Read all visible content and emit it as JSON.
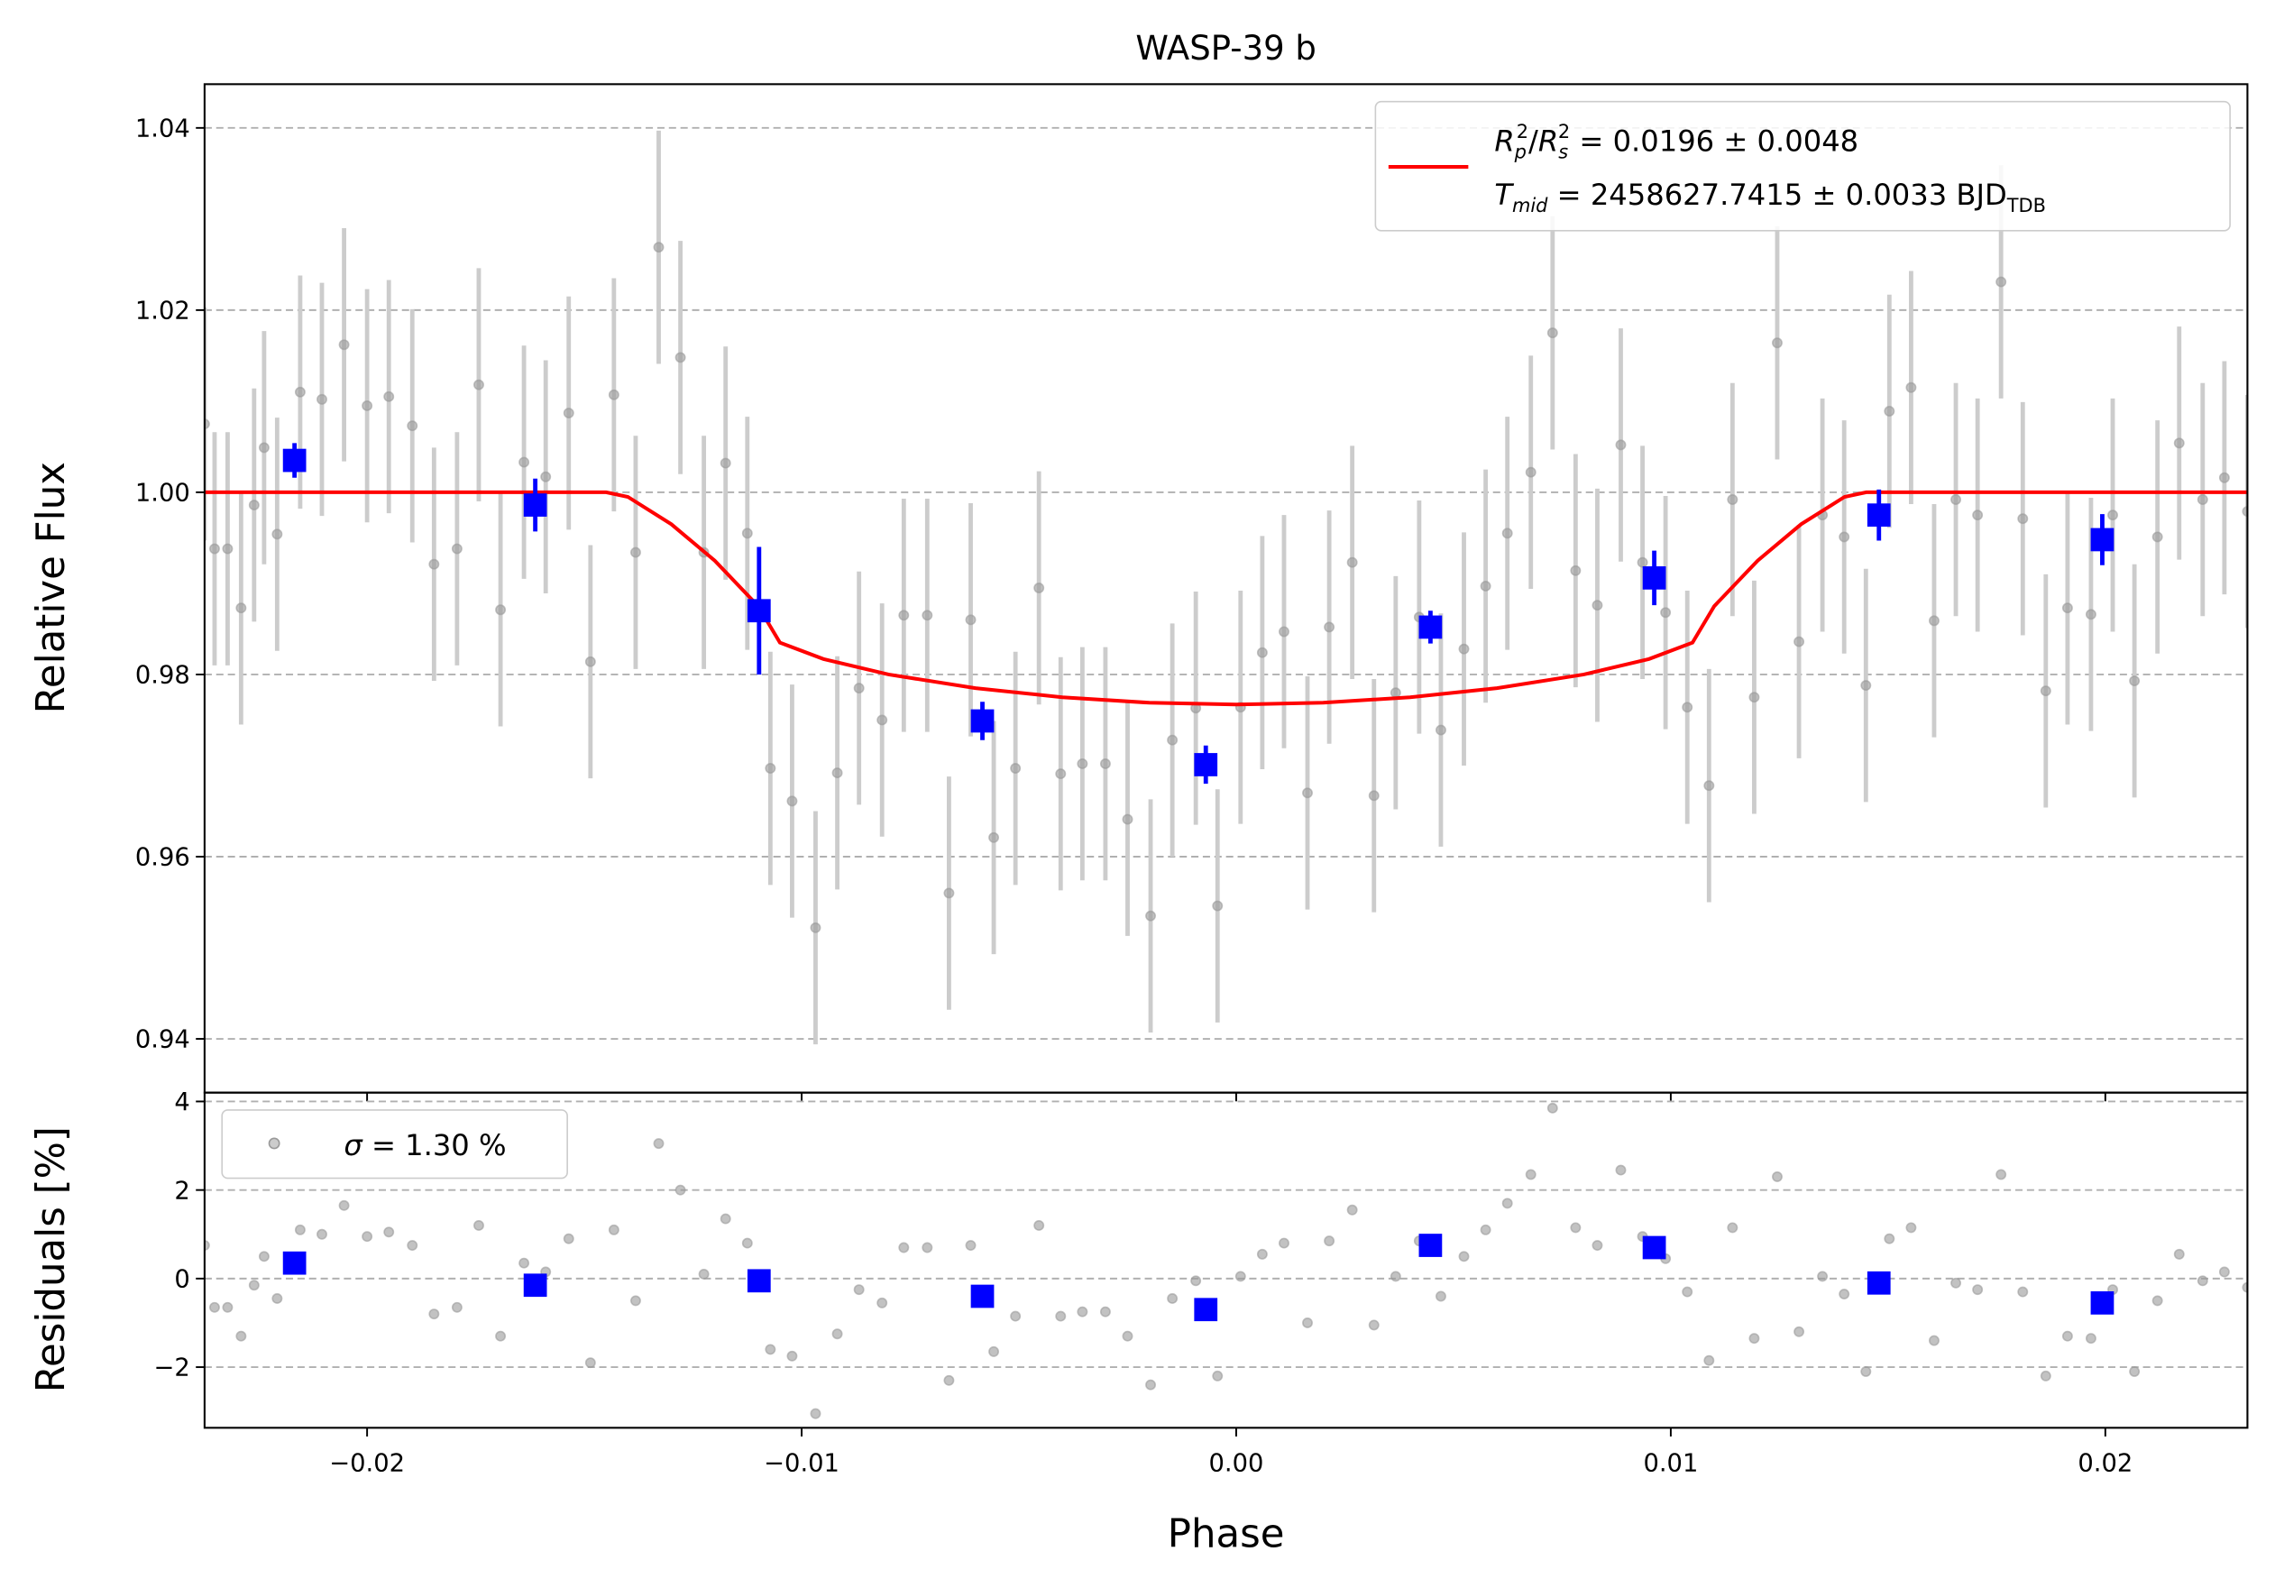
{
  "chart_data": [
    {
      "type": "errorbar",
      "title": "WASP-39 b",
      "ylabel": "Relative Flux",
      "xlim": [
        -0.02374,
        0.02327
      ],
      "ylim": [
        0.9341,
        1.0448
      ],
      "xticks": [
        -0.02,
        -0.01,
        0,
        0.01,
        0.02
      ],
      "xtick_labels": false,
      "yticks": [
        0.94,
        0.96,
        0.98,
        {
          "value": 1,
          "label": "1.00"
        },
        1.02,
        1.04
      ],
      "grid": "y",
      "data": {
        "color": "#999999",
        "ecolor": "#cccccc",
        "x": [
          -0.02374,
          -0.02351,
          -0.02321,
          -0.0229,
          -0.0226,
          -0.02237,
          -0.02207,
          -0.02154,
          -0.02104,
          -0.02053,
          -0.02,
          -0.0195,
          -0.01896,
          -0.01846,
          -0.01793,
          -0.01743,
          -0.01693,
          -0.01639,
          -0.01589,
          -0.01536,
          -0.01486,
          -0.01432,
          -0.01382,
          -0.01329,
          -0.01279,
          -0.01225,
          -0.01175,
          -0.01125,
          -0.01072,
          -0.01022,
          -0.00968,
          -0.00918,
          -0.00868,
          -0.00815,
          -0.00765,
          -0.00711,
          -0.00661,
          -0.00611,
          -0.00558,
          -0.00508,
          -0.00454,
          -0.00404,
          -0.00354,
          -0.00301,
          -0.0025,
          -0.00197,
          -0.00147,
          -0.00093,
          -0.00043,
          0.0001,
          0.0006,
          0.0011,
          0.00164,
          0.00214,
          0.00267,
          0.00317,
          0.00367,
          0.00421,
          0.00471,
          0.00524,
          0.00574,
          0.00624,
          0.00678,
          0.00728,
          0.00781,
          0.00831,
          0.00885,
          0.00935,
          0.00988,
          0.01038,
          0.01088,
          0.01142,
          0.01192,
          0.01245,
          0.01295,
          0.01349,
          0.01399,
          0.01449,
          0.01503,
          0.01553,
          0.01606,
          0.01656,
          0.01706,
          0.0176,
          0.0181,
          0.01863,
          0.01913,
          0.01967,
          0.02017,
          0.02067,
          0.0212,
          0.0217,
          0.02224,
          0.02274,
          0.02327
        ],
        "values": [
          1.0075,
          0.9938,
          0.9938,
          0.9873,
          0.9986,
          1.0049,
          0.9954,
          1.011,
          1.0102,
          1.0162,
          1.0095,
          1.0105,
          1.0073,
          0.9921,
          0.9938,
          1.0118,
          0.9871,
          1.0033,
          1.0017,
          1.0087,
          0.9814,
          1.0107,
          0.9934,
          1.0269,
          1.0148,
          0.9934,
          1.0032,
          0.9955,
          0.9697,
          0.9661,
          0.9522,
          0.9692,
          0.9785,
          0.975,
          0.9865,
          0.9865,
          0.956,
          0.986,
          0.9621,
          0.9697,
          0.9895,
          0.9691,
          0.9702,
          0.9702,
          0.9641,
          0.9535,
          0.9728,
          0.9763,
          0.9546,
          0.9764,
          0.9824,
          0.9847,
          0.967,
          0.9852,
          0.9923,
          0.9667,
          0.978,
          0.9863,
          0.9739,
          0.9828,
          0.9897,
          0.9955,
          1.0022,
          1.0175,
          0.9914,
          0.9876,
          1.0052,
          0.9923,
          0.9868,
          0.9764,
          0.9678,
          0.9992,
          0.9775,
          1.0164,
          0.9836,
          0.9975,
          0.9951,
          0.9788,
          1.0089,
          1.0115,
          0.9859,
          0.9992,
          0.9975,
          1.0231,
          0.9971,
          0.9782,
          0.9873,
          0.9866,
          0.9975,
          0.9793,
          0.9951,
          1.0054,
          0.9992,
          1.0016,
          0.9979
        ],
        "errors": [
          0.0128,
          0.0128,
          0.0128,
          0.0128,
          0.0128,
          0.0128,
          0.0128,
          0.0128,
          0.0128,
          0.0128,
          0.0128,
          0.0128,
          0.0128,
          0.0128,
          0.0128,
          0.0128,
          0.0128,
          0.0128,
          0.0128,
          0.0128,
          0.0128,
          0.0128,
          0.0128,
          0.0128,
          0.0128,
          0.0128,
          0.0128,
          0.0128,
          0.0128,
          0.0128,
          0.0128,
          0.0128,
          0.0128,
          0.0128,
          0.0128,
          0.0128,
          0.0128,
          0.0128,
          0.0128,
          0.0128,
          0.0128,
          0.0128,
          0.0128,
          0.0128,
          0.0128,
          0.0128,
          0.0128,
          0.0128,
          0.0128,
          0.0128,
          0.0128,
          0.0128,
          0.0128,
          0.0128,
          0.0128,
          0.0128,
          0.0128,
          0.0128,
          0.0128,
          0.0128,
          0.0128,
          0.0128,
          0.0128,
          0.0128,
          0.0128,
          0.0128,
          0.0128,
          0.0128,
          0.0128,
          0.0128,
          0.0128,
          0.0128,
          0.0128,
          0.0128,
          0.0128,
          0.0128,
          0.0128,
          0.0128,
          0.0128,
          0.0128,
          0.0128,
          0.0128,
          0.0128,
          0.0128,
          0.0128,
          0.0128,
          0.0128,
          0.0128,
          0.0128,
          0.0128,
          0.0128,
          0.0128,
          0.0128,
          0.0128,
          0.0128
        ]
      },
      "model": {
        "color": "#ff0000",
        "x": [
          -0.02374,
          -0.0145,
          -0.014,
          -0.013,
          -0.012,
          -0.011,
          -0.0105,
          -0.0095,
          -0.008,
          -0.006,
          -0.004,
          -0.002,
          0,
          0.002,
          0.004,
          0.006,
          0.008,
          0.0095,
          0.0105,
          0.011,
          0.012,
          0.013,
          0.014,
          0.0145,
          0.02327
        ],
        "values": [
          1,
          1,
          0.9995,
          0.9965,
          0.9925,
          0.9875,
          0.9835,
          0.9817,
          0.98,
          0.9785,
          0.9775,
          0.9769,
          0.9767,
          0.9769,
          0.9775,
          0.9785,
          0.98,
          0.9817,
          0.9835,
          0.9875,
          0.9925,
          0.9965,
          0.9995,
          1,
          1
        ],
        "name_parts": [
          "R",
          "p",
          "2",
          "/",
          "R",
          "s",
          "2",
          " = 0.0196 ± 0.0048",
          "T",
          "mid",
          " = 2458627.7415 ± 0.0033 BJD",
          "TDB"
        ]
      },
      "binned": {
        "color": "#0000ff",
        "x": [
          -0.02167,
          -0.01613,
          -0.01098,
          -0.00584,
          -0.0007,
          0.00447,
          0.00962,
          0.01479,
          0.01993
        ],
        "values": [
          1.0035,
          0.9986,
          0.987,
          0.9749,
          0.9701,
          0.9852,
          0.9906,
          0.9975,
          0.9948
        ],
        "errors": [
          0.0019,
          0.0029,
          0.007,
          0.0021,
          0.0021,
          0.0018,
          0.003,
          0.0028,
          0.0028
        ]
      }
    },
    {
      "type": "scatter",
      "ylabel": "Residuals [%]",
      "xlabel": "Phase",
      "xlim": [
        -0.02374,
        0.02327
      ],
      "ylim": [
        -3.37,
        4.2
      ],
      "xticks": [
        {
          "value": -0.02,
          "label": "−0.02"
        },
        {
          "value": -0.01,
          "label": "−0.01"
        },
        {
          "value": 0,
          "label": "0.00"
        },
        {
          "value": 0.01,
          "label": "0.01"
        },
        {
          "value": 0.02,
          "label": "0.02"
        }
      ],
      "xtick_labels": true,
      "yticks": [
        {
          "value": -2,
          "label": "−2"
        },
        0,
        2,
        4
      ],
      "grid": "y",
      "data": {
        "color": "#999999",
        "name_parts": [
          "σ",
          " = 1.30 %"
        ],
        "x": [
          -0.02374,
          -0.02351,
          -0.02321,
          -0.0229,
          -0.0226,
          -0.02237,
          -0.02207,
          -0.02154,
          -0.02104,
          -0.02053,
          -0.02,
          -0.0195,
          -0.01896,
          -0.01846,
          -0.01793,
          -0.01743,
          -0.01693,
          -0.01639,
          -0.01589,
          -0.01536,
          -0.01486,
          -0.01432,
          -0.01382,
          -0.01329,
          -0.01279,
          -0.01225,
          -0.01175,
          -0.01125,
          -0.01072,
          -0.01022,
          -0.00968,
          -0.00918,
          -0.00868,
          -0.00815,
          -0.00765,
          -0.00711,
          -0.00661,
          -0.00611,
          -0.00558,
          -0.00508,
          -0.00454,
          -0.00404,
          -0.00354,
          -0.00301,
          -0.0025,
          -0.00197,
          -0.00147,
          -0.00093,
          -0.00043,
          0.0001,
          0.0006,
          0.0011,
          0.00164,
          0.00214,
          0.00267,
          0.00317,
          0.00367,
          0.00421,
          0.00471,
          0.00524,
          0.00574,
          0.00624,
          0.00678,
          0.00728,
          0.00781,
          0.00831,
          0.00885,
          0.00935,
          0.00988,
          0.01038,
          0.01088,
          0.01142,
          0.01192,
          0.01245,
          0.01295,
          0.01349,
          0.01399,
          0.01449,
          0.01503,
          0.01553,
          0.01606,
          0.01656,
          0.01706,
          0.0176,
          0.0181,
          0.01863,
          0.01913,
          0.01967,
          0.02017,
          0.02067,
          0.0212,
          0.0217,
          0.02224,
          0.02274,
          0.02327
        ],
        "values": [
          0.75,
          -0.65,
          -0.65,
          -1.3,
          -0.15,
          0.5,
          -0.45,
          1.1,
          1.0,
          1.65,
          0.95,
          1.05,
          0.75,
          -0.8,
          -0.65,
          1.2,
          -1.3,
          0.35,
          0.15,
          0.9,
          -1.9,
          1.1,
          -0.5,
          3.05,
          2.0,
          0.1,
          1.35,
          0.8,
          -1.6,
          -1.75,
          -3.05,
          -1.25,
          -0.25,
          -0.55,
          0.7,
          0.7,
          -2.3,
          0.75,
          -1.65,
          -0.85,
          1.2,
          -0.85,
          -0.75,
          -0.75,
          -1.3,
          -2.4,
          -0.45,
          -0.05,
          -2.2,
          0.05,
          0.55,
          0.8,
          -1.0,
          0.85,
          1.55,
          -1.05,
          0.05,
          0.85,
          -0.4,
          0.5,
          1.1,
          1.7,
          2.35,
          3.85,
          1.15,
          0.75,
          2.45,
          0.95,
          0.45,
          -0.3,
          -1.85,
          1.15,
          -1.35,
          2.3,
          -1.2,
          0.05,
          -0.35,
          -2.1,
          0.9,
          1.15,
          -1.4,
          -0.1,
          -0.25,
          2.35,
          -0.3,
          -2.2,
          -1.3,
          -1.35,
          -0.25,
          -2.1,
          -0.5,
          0.55,
          -0.05,
          0.15,
          -0.2
        ]
      },
      "binned": {
        "color": "#0000ff",
        "x": [
          -0.02167,
          -0.01613,
          -0.01098,
          -0.00584,
          -0.0007,
          0.00447,
          0.00962,
          0.01479,
          0.01993
        ],
        "values": [
          0.35,
          -0.15,
          -0.05,
          -0.4,
          -0.7,
          0.75,
          0.7,
          -0.1,
          -0.55
        ]
      }
    }
  ]
}
